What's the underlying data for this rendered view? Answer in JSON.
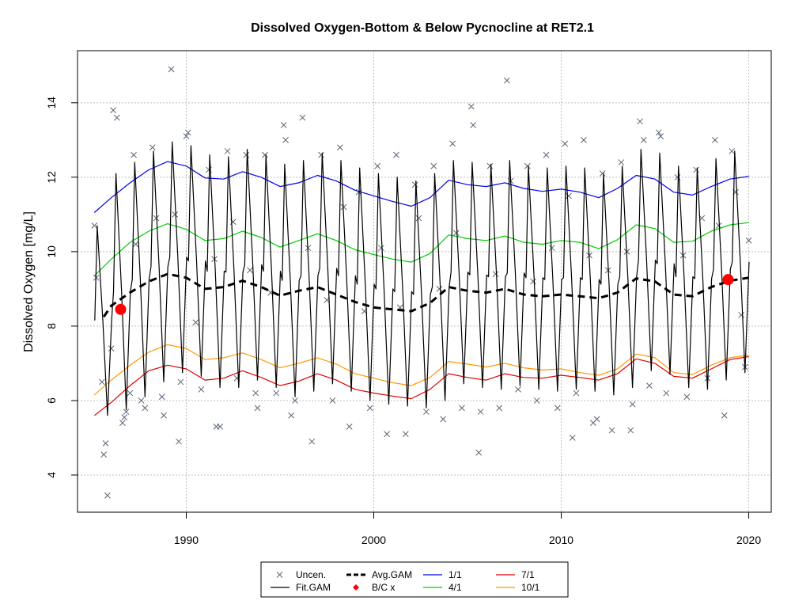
{
  "chart_data": {
    "type": "line",
    "title": "Dissolved Oxygen-Bottom & Below Pycnocline at RET2.1",
    "xlabel": "",
    "ylabel": "Dissolved Oxygen [mg/L]",
    "xlim": [
      1984.2,
      2021.2
    ],
    "ylim": [
      3.0,
      15.4
    ],
    "x_ticks": [
      "1990",
      "2000",
      "2010",
      "2020"
    ],
    "y_ticks": [
      "4",
      "6",
      "8",
      "10",
      "12",
      "14"
    ],
    "grid": true,
    "legend_position": "bottom",
    "legend": [
      {
        "label": "Uncen.",
        "symbol": "x",
        "color": "#5a6478"
      },
      {
        "label": "Avg.GAM",
        "symbol": "dashed",
        "color": "#000000"
      },
      {
        "label": "1/1",
        "symbol": "line",
        "color": "#0000ee"
      },
      {
        "label": "7/1",
        "symbol": "line",
        "color": "#e00000"
      },
      {
        "label": "Fit.GAM",
        "symbol": "line",
        "color": "#000000"
      },
      {
        "label": "B/C x",
        "symbol": "dot",
        "color": "#ff0000"
      },
      {
        "label": "4/1",
        "symbol": "line",
        "color": "#00cc00"
      },
      {
        "label": "10/1",
        "symbol": "line",
        "color": "#ff9900"
      }
    ],
    "series": [
      {
        "name": "1/1",
        "color": "#0000ee",
        "x": [
          1985.1,
          1986,
          1987,
          1988,
          1989,
          1990,
          1991,
          1992,
          1993,
          1994,
          1995,
          1996,
          1997,
          1998,
          1999,
          2000,
          2001,
          2002,
          2003,
          2004,
          2005,
          2006,
          2007,
          2008,
          2009,
          2010,
          2011,
          2012,
          2013,
          2014,
          2015,
          2016,
          2017,
          2018,
          2019,
          2020
        ],
        "y": [
          11.05,
          11.45,
          11.85,
          12.2,
          12.42,
          12.3,
          11.98,
          11.95,
          12.15,
          12.0,
          11.75,
          11.85,
          12.05,
          11.9,
          11.65,
          11.5,
          11.35,
          11.22,
          11.45,
          11.92,
          11.8,
          11.75,
          11.85,
          11.7,
          11.62,
          11.68,
          11.6,
          11.45,
          11.7,
          12.05,
          11.95,
          11.6,
          11.52,
          11.75,
          11.95,
          12.02
        ]
      },
      {
        "name": "4/1",
        "color": "#00cc00",
        "x": [
          1985.1,
          1986,
          1987,
          1988,
          1989,
          1990,
          1991,
          1992,
          1993,
          1994,
          1995,
          1996,
          1997,
          1998,
          1999,
          2000,
          2001,
          2002,
          2003,
          2004,
          2005,
          2006,
          2007,
          2008,
          2009,
          2010,
          2011,
          2012,
          2013,
          2014,
          2015,
          2016,
          2017,
          2018,
          2019,
          2020
        ],
        "y": [
          9.35,
          9.8,
          10.25,
          10.55,
          10.75,
          10.6,
          10.3,
          10.35,
          10.55,
          10.38,
          10.12,
          10.3,
          10.48,
          10.3,
          10.05,
          9.92,
          9.8,
          9.72,
          9.95,
          10.45,
          10.35,
          10.3,
          10.42,
          10.25,
          10.2,
          10.3,
          10.25,
          10.08,
          10.32,
          10.72,
          10.62,
          10.25,
          10.28,
          10.55,
          10.72,
          10.78
        ]
      },
      {
        "name": "7/1",
        "color": "#e00000",
        "x": [
          1985.1,
          1986,
          1987,
          1988,
          1989,
          1990,
          1991,
          1992,
          1993,
          1994,
          1995,
          1996,
          1997,
          1998,
          1999,
          2000,
          2001,
          2002,
          2003,
          2004,
          2005,
          2006,
          2007,
          2008,
          2009,
          2010,
          2011,
          2012,
          2013,
          2014,
          2015,
          2016,
          2017,
          2018,
          2019,
          2020
        ],
        "y": [
          5.6,
          5.95,
          6.4,
          6.8,
          6.95,
          6.85,
          6.55,
          6.6,
          6.8,
          6.62,
          6.4,
          6.52,
          6.72,
          6.55,
          6.3,
          6.2,
          6.12,
          6.05,
          6.3,
          6.72,
          6.62,
          6.55,
          6.72,
          6.62,
          6.6,
          6.68,
          6.62,
          6.55,
          6.72,
          7.12,
          7.0,
          6.65,
          6.6,
          6.85,
          7.1,
          7.18
        ]
      },
      {
        "name": "10/1",
        "color": "#ff9900",
        "x": [
          1985.1,
          1986,
          1987,
          1988,
          1989,
          1990,
          1991,
          1992,
          1993,
          1994,
          1995,
          1996,
          1997,
          1998,
          1999,
          2000,
          2001,
          2002,
          2003,
          2004,
          2005,
          2006,
          2007,
          2008,
          2009,
          2010,
          2011,
          2012,
          2013,
          2014,
          2015,
          2016,
          2017,
          2018,
          2019,
          2020
        ],
        "y": [
          6.15,
          6.55,
          6.95,
          7.3,
          7.5,
          7.4,
          7.1,
          7.15,
          7.28,
          7.1,
          6.88,
          7.0,
          7.15,
          6.98,
          6.72,
          6.6,
          6.48,
          6.4,
          6.62,
          7.05,
          6.98,
          6.9,
          7.0,
          6.88,
          6.82,
          6.85,
          6.75,
          6.68,
          6.85,
          7.25,
          7.15,
          6.75,
          6.7,
          6.95,
          7.15,
          7.22
        ]
      },
      {
        "name": "Avg.GAM",
        "color": "#000000",
        "dash": true,
        "x": [
          1985.6,
          1986,
          1987,
          1988,
          1989,
          1990,
          1991,
          1992,
          1993,
          1994,
          1995,
          1996,
          1997,
          1998,
          1999,
          2000,
          2001,
          2002,
          2003,
          2004,
          2005,
          2006,
          2007,
          2008,
          2009,
          2010,
          2011,
          2012,
          2013,
          2014,
          2015,
          2016,
          2017,
          2018,
          2019,
          2020
        ],
        "y": [
          8.25,
          8.55,
          8.9,
          9.2,
          9.4,
          9.3,
          9.0,
          9.05,
          9.22,
          9.05,
          8.82,
          8.95,
          9.05,
          8.85,
          8.65,
          8.5,
          8.45,
          8.4,
          8.62,
          9.05,
          8.95,
          8.9,
          9.0,
          8.85,
          8.8,
          8.85,
          8.8,
          8.75,
          8.9,
          9.28,
          9.2,
          8.85,
          8.8,
          9.05,
          9.22,
          9.3
        ]
      },
      {
        "name": "Fit.GAM",
        "color": "#000000",
        "x": [
          1985.2,
          1986.2,
          1987.2,
          1988.2,
          1989.2,
          1990.2,
          1991.2,
          1992.2,
          1993.2,
          1994.2,
          1995.2,
          1996.2,
          1997.2,
          1998.2,
          1999.2,
          2000.2,
          2001.2,
          2002.2,
          2003.2,
          2004.2,
          2005.2,
          2006.2,
          2007.2,
          2008.2,
          2009.2,
          2010.2,
          2011.2,
          2012.2,
          2013.2,
          2014.2,
          2015.2,
          2016.2,
          2017.2,
          2018.2,
          2019.2
        ],
        "y_max": [
          10.7,
          12.1,
          12.4,
          12.7,
          12.95,
          12.85,
          12.6,
          12.55,
          12.75,
          12.6,
          12.35,
          12.45,
          12.65,
          12.45,
          12.25,
          12.1,
          12.0,
          11.9,
          12.1,
          12.45,
          12.4,
          12.35,
          12.45,
          12.3,
          12.25,
          12.3,
          12.25,
          12.1,
          12.3,
          12.75,
          12.65,
          12.3,
          12.25,
          12.5,
          12.7
        ],
        "y_min": [
          5.6,
          5.75,
          6.1,
          6.5,
          6.75,
          6.65,
          6.35,
          6.35,
          6.55,
          6.35,
          6.1,
          6.25,
          6.45,
          6.25,
          6.0,
          5.9,
          5.85,
          5.8,
          6.0,
          6.45,
          6.35,
          6.3,
          6.4,
          6.3,
          6.25,
          6.3,
          6.25,
          6.15,
          6.35,
          6.8,
          6.7,
          6.35,
          6.3,
          6.55,
          6.75
        ]
      }
    ],
    "points_uncensored": [
      [
        1985.1,
        10.7
      ],
      [
        1985.2,
        9.3
      ],
      [
        1985.5,
        6.5
      ],
      [
        1985.6,
        4.55
      ],
      [
        1985.7,
        4.85
      ],
      [
        1985.8,
        3.45
      ],
      [
        1986.0,
        7.4
      ],
      [
        1986.1,
        13.8
      ],
      [
        1986.3,
        13.6
      ],
      [
        1986.6,
        5.4
      ],
      [
        1986.7,
        5.55
      ],
      [
        1986.8,
        5.7
      ],
      [
        1987.0,
        6.2
      ],
      [
        1987.2,
        12.6
      ],
      [
        1987.3,
        10.2
      ],
      [
        1987.6,
        6.0
      ],
      [
        1987.8,
        5.8
      ],
      [
        1988.2,
        12.8
      ],
      [
        1988.4,
        10.9
      ],
      [
        1988.7,
        6.1
      ],
      [
        1988.8,
        5.6
      ],
      [
        1989.2,
        14.9
      ],
      [
        1989.4,
        11.0
      ],
      [
        1989.6,
        4.9
      ],
      [
        1989.7,
        6.5
      ],
      [
        1990.0,
        13.1
      ],
      [
        1990.1,
        13.2
      ],
      [
        1990.5,
        8.1
      ],
      [
        1990.8,
        6.3
      ],
      [
        1991.2,
        12.2
      ],
      [
        1991.5,
        9.8
      ],
      [
        1991.6,
        5.3
      ],
      [
        1991.8,
        5.3
      ],
      [
        1992.2,
        12.7
      ],
      [
        1992.5,
        10.8
      ],
      [
        1992.7,
        6.6
      ],
      [
        1993.2,
        12.6
      ],
      [
        1993.4,
        9.5
      ],
      [
        1993.7,
        6.2
      ],
      [
        1993.8,
        5.8
      ],
      [
        1994.2,
        12.6
      ],
      [
        1994.5,
        8.9
      ],
      [
        1994.8,
        6.2
      ],
      [
        1995.2,
        13.4
      ],
      [
        1995.3,
        13.0
      ],
      [
        1995.6,
        5.6
      ],
      [
        1995.8,
        6.0
      ],
      [
        1996.2,
        13.6
      ],
      [
        1996.5,
        10.1
      ],
      [
        1996.7,
        4.9
      ],
      [
        1997.2,
        12.6
      ],
      [
        1997.5,
        8.7
      ],
      [
        1997.8,
        6.0
      ],
      [
        1998.2,
        12.8
      ],
      [
        1998.4,
        11.2
      ],
      [
        1998.7,
        5.3
      ],
      [
        1999.2,
        11.6
      ],
      [
        1999.5,
        8.4
      ],
      [
        1999.8,
        5.8
      ],
      [
        2000.2,
        12.3
      ],
      [
        2000.4,
        10.1
      ],
      [
        2000.7,
        5.1
      ],
      [
        2001.2,
        12.6
      ],
      [
        2001.4,
        8.5
      ],
      [
        2001.7,
        5.1
      ],
      [
        2002.2,
        11.8
      ],
      [
        2002.4,
        10.9
      ],
      [
        2002.8,
        5.7
      ],
      [
        2003.2,
        12.3
      ],
      [
        2003.5,
        9.0
      ],
      [
        2003.7,
        5.5
      ],
      [
        2004.2,
        12.9
      ],
      [
        2004.4,
        10.5
      ],
      [
        2004.7,
        5.8
      ],
      [
        2005.2,
        13.9
      ],
      [
        2005.3,
        13.4
      ],
      [
        2005.6,
        4.6
      ],
      [
        2005.7,
        5.7
      ],
      [
        2006.2,
        12.3
      ],
      [
        2006.5,
        9.4
      ],
      [
        2006.7,
        5.8
      ],
      [
        2007.1,
        14.6
      ],
      [
        2007.3,
        11.9
      ],
      [
        2007.7,
        6.3
      ],
      [
        2008.2,
        12.3
      ],
      [
        2008.5,
        9.2
      ],
      [
        2008.7,
        6.0
      ],
      [
        2009.2,
        12.6
      ],
      [
        2009.5,
        10.1
      ],
      [
        2009.8,
        5.8
      ],
      [
        2010.2,
        12.9
      ],
      [
        2010.4,
        11.5
      ],
      [
        2010.6,
        5.0
      ],
      [
        2010.8,
        6.2
      ],
      [
        2011.2,
        13.0
      ],
      [
        2011.5,
        9.9
      ],
      [
        2011.7,
        5.4
      ],
      [
        2011.9,
        5.5
      ],
      [
        2012.2,
        12.1
      ],
      [
        2012.5,
        9.5
      ],
      [
        2012.7,
        5.2
      ],
      [
        2013.2,
        12.4
      ],
      [
        2013.5,
        10.0
      ],
      [
        2013.7,
        5.2
      ],
      [
        2013.8,
        5.9
      ],
      [
        2014.2,
        13.5
      ],
      [
        2014.4,
        13.0
      ],
      [
        2014.7,
        6.4
      ],
      [
        2015.2,
        13.2
      ],
      [
        2015.3,
        13.1
      ],
      [
        2015.6,
        6.2
      ],
      [
        2016.2,
        12.0
      ],
      [
        2016.5,
        9.9
      ],
      [
        2016.7,
        6.1
      ],
      [
        2017.2,
        12.2
      ],
      [
        2017.5,
        10.9
      ],
      [
        2017.8,
        6.6
      ],
      [
        2018.2,
        13.0
      ],
      [
        2018.4,
        10.7
      ],
      [
        2018.7,
        5.6
      ],
      [
        2019.1,
        12.7
      ],
      [
        2019.3,
        11.6
      ],
      [
        2019.6,
        8.3
      ],
      [
        2019.8,
        6.9
      ],
      [
        2020.0,
        10.3
      ]
    ],
    "points_bc": [
      [
        1986.5,
        8.45
      ],
      [
        2018.9,
        9.25
      ]
    ]
  }
}
